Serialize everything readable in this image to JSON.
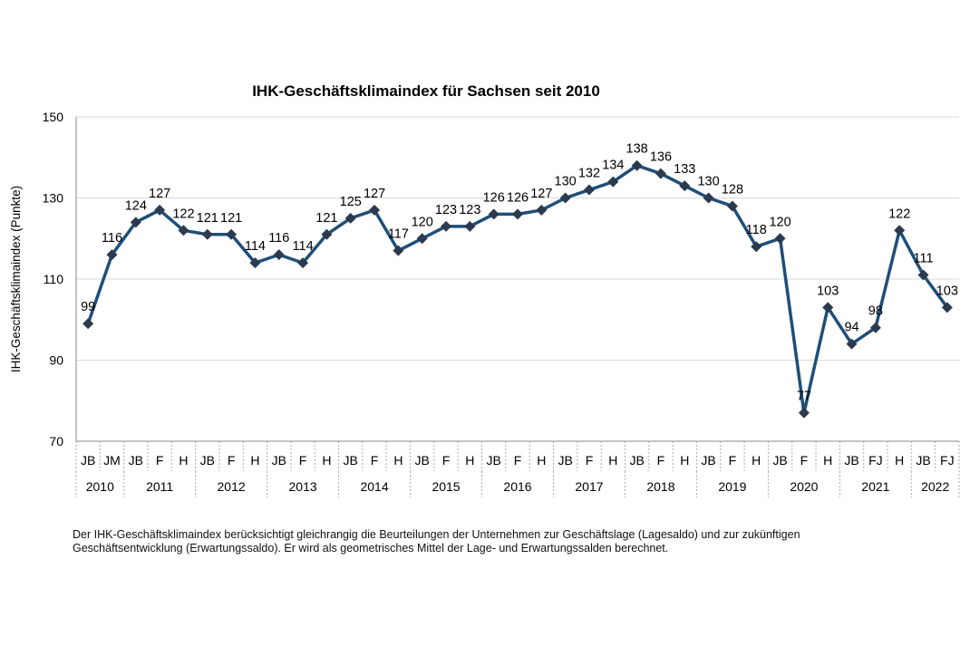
{
  "chart_data": {
    "type": "line",
    "title": "IHK-Geschäftsklimaindex für Sachsen seit 2010",
    "ylabel": "IHK-Geschäftsklimaindex (Punkte)",
    "xlabel": "",
    "ylim": [
      70,
      150
    ],
    "yticks": [
      70,
      90,
      110,
      130,
      150
    ],
    "grid": true,
    "categories": [
      "JB",
      "JM",
      "JB",
      "F",
      "H",
      "JB",
      "F",
      "H",
      "JB",
      "F",
      "H",
      "JB",
      "F",
      "H",
      "JB",
      "F",
      "H",
      "JB",
      "F",
      "H",
      "JB",
      "F",
      "H",
      "JB",
      "F",
      "H",
      "JB",
      "F",
      "H",
      "JB",
      "F",
      "H",
      "JB",
      "FJ",
      "H",
      "JB",
      "FJ"
    ],
    "years": [
      {
        "label": "2010",
        "count": 2
      },
      {
        "label": "2011",
        "count": 3
      },
      {
        "label": "2012",
        "count": 3
      },
      {
        "label": "2013",
        "count": 3
      },
      {
        "label": "2014",
        "count": 3
      },
      {
        "label": "2015",
        "count": 3
      },
      {
        "label": "2016",
        "count": 3
      },
      {
        "label": "2017",
        "count": 3
      },
      {
        "label": "2018",
        "count": 3
      },
      {
        "label": "2019",
        "count": 3
      },
      {
        "label": "2020",
        "count": 3
      },
      {
        "label": "2021",
        "count": 3
      },
      {
        "label": "2022",
        "count": 2
      }
    ],
    "series": [
      {
        "name": "IHK-Geschäftsklimaindex",
        "values": [
          99,
          116,
          124,
          127,
          122,
          121,
          121,
          114,
          116,
          114,
          121,
          125,
          127,
          117,
          120,
          123,
          123,
          126,
          126,
          127,
          130,
          132,
          134,
          138,
          136,
          133,
          130,
          128,
          118,
          120,
          77,
          103,
          94,
          98,
          122,
          111,
          103
        ]
      }
    ],
    "colors": {
      "line": "#1f4e79",
      "marker": "#2b3a4e",
      "grid": "#d9d9d9"
    }
  },
  "footnote": [
    "Der IHK-Geschäftsklimaindex berücksichtigt gleichrangig die Beurteilungen der Unternehmen zur Geschäftslage (Lagesaldo) und zur zukünftigen",
    "Geschäftsentwicklung (Erwartungssaldo). Er wird als geometrisches Mittel der Lage- und Erwartungssalden berechnet."
  ]
}
